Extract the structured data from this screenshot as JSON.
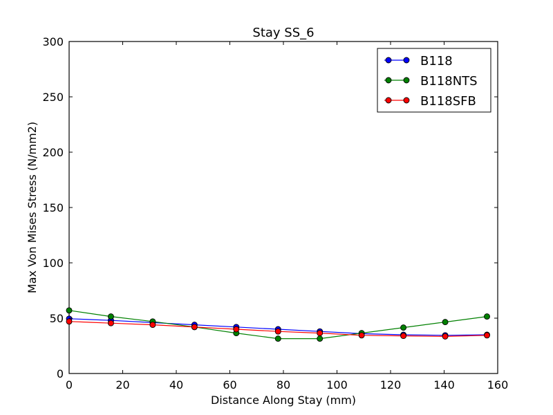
{
  "chart_data": {
    "type": "line",
    "title": "Stay SS_6",
    "xlabel": "Distance Along Stay (mm)",
    "ylabel": "Max Von Mises Stress (N/mm2)",
    "xlim": [
      0,
      160
    ],
    "ylim": [
      0,
      300
    ],
    "xticks": [
      0,
      20,
      40,
      60,
      80,
      100,
      120,
      140,
      160
    ],
    "yticks": [
      0,
      50,
      100,
      150,
      200,
      250,
      300
    ],
    "x_tick_labels": [
      "0",
      "20",
      "40",
      "60",
      "80",
      "100",
      "120",
      "140",
      "160"
    ],
    "y_tick_labels": [
      "0",
      "50",
      "100",
      "150",
      "200",
      "250",
      "300"
    ],
    "grid": false,
    "legend_position": "top-right",
    "series": [
      {
        "name": "B118",
        "color": "#0000ff",
        "x": [
          0,
          15.6,
          31.2,
          46.8,
          62.4,
          78.0,
          93.6,
          109.2,
          124.8,
          140.4,
          156.0
        ],
        "y": [
          49.5,
          48.0,
          46.0,
          44.0,
          42.0,
          40.0,
          38.0,
          36.0,
          35.0,
          34.5,
          35.0
        ]
      },
      {
        "name": "B118NTS",
        "color": "#008000",
        "x": [
          0,
          15.6,
          31.2,
          46.8,
          62.4,
          78.0,
          93.6,
          109.2,
          124.8,
          140.4,
          156.0
        ],
        "y": [
          57.0,
          51.5,
          47.0,
          42.0,
          36.5,
          31.5,
          31.5,
          36.5,
          41.5,
          46.5,
          51.5
        ]
      },
      {
        "name": "B118SFB",
        "color": "#ff0000",
        "x": [
          0,
          15.6,
          31.2,
          46.8,
          62.4,
          78.0,
          93.6,
          109.2,
          124.8,
          140.4,
          156.0
        ],
        "y": [
          47.0,
          45.5,
          44.0,
          42.0,
          40.0,
          38.0,
          36.5,
          34.5,
          34.0,
          33.5,
          34.5
        ]
      }
    ]
  }
}
